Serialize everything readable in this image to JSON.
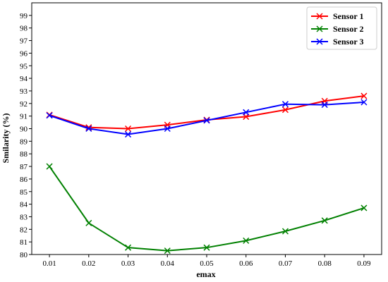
{
  "chart_data": {
    "type": "line",
    "title": "",
    "xlabel": "emax",
    "ylabel": "Smilarity (%)",
    "x": [
      0.01,
      0.02,
      0.03,
      0.04,
      0.05,
      0.06,
      0.07,
      0.08,
      0.09
    ],
    "x_tick_labels": [
      "0.01",
      "0.02",
      "0.03",
      "0.04",
      "0.05",
      "0.06",
      "0.07",
      "0.08",
      "0.09"
    ],
    "ylim": [
      80,
      100
    ],
    "y_ticks": [
      80,
      81,
      82,
      83,
      84,
      85,
      86,
      87,
      88,
      89,
      90,
      91,
      92,
      93,
      94,
      95,
      96,
      97,
      98,
      99
    ],
    "grid": false,
    "legend_position": "top-right",
    "marker": "x",
    "series": [
      {
        "name": "Sensor 1",
        "color": "#ff0000",
        "values": [
          91.1,
          90.1,
          90.0,
          90.3,
          90.7,
          90.95,
          91.5,
          92.2,
          92.6
        ]
      },
      {
        "name": "Sensor 2",
        "color": "#008000",
        "values": [
          87.0,
          82.5,
          80.55,
          80.3,
          80.55,
          81.1,
          81.85,
          82.7,
          83.7
        ]
      },
      {
        "name": "Sensor 3",
        "color": "#0000ff",
        "values": [
          91.05,
          90.0,
          89.55,
          90.0,
          90.65,
          91.3,
          91.95,
          91.9,
          92.1
        ]
      }
    ]
  }
}
